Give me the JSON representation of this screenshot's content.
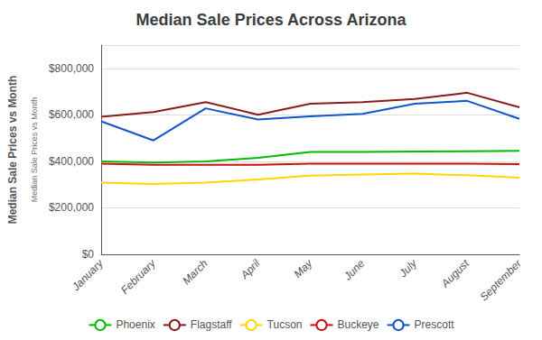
{
  "chart_data": {
    "type": "line",
    "title": "Median Sale Prices Across Arizona",
    "ylabel": "Median Sale Prices vs Month",
    "annotations": [
      "Median Sale Prices vs Month"
    ],
    "categories": [
      "January",
      "February",
      "March",
      "April",
      "May",
      "June",
      "July",
      "August",
      "September"
    ],
    "series": [
      {
        "name": "Phoenix",
        "color": "#00BB00",
        "values": [
          400000,
          395000,
          400000,
          415000,
          440000,
          440000,
          442000,
          443000,
          445000
        ]
      },
      {
        "name": "Flagstaff",
        "color": "#8B1A1A",
        "values": [
          592000,
          612000,
          655000,
          600000,
          648000,
          655000,
          668000,
          695000,
          632000
        ]
      },
      {
        "name": "Tucson",
        "color": "#FFD700",
        "values": [
          308000,
          303000,
          308000,
          322000,
          338000,
          343000,
          347000,
          340000,
          330000
        ]
      },
      {
        "name": "Buckeye",
        "color": "#CC1111",
        "values": [
          390000,
          385000,
          385000,
          385000,
          390000,
          390000,
          390000,
          390000,
          388000
        ]
      },
      {
        "name": "Prescott",
        "color": "#1155CC",
        "values": [
          572000,
          490000,
          628000,
          580000,
          594000,
          604000,
          648000,
          660000,
          583000
        ]
      }
    ],
    "ylim": [
      0,
      900000
    ],
    "yticks": [
      {
        "value": 0,
        "label": "$0"
      },
      {
        "value": 200000,
        "label": "$200,000"
      },
      {
        "value": 400000,
        "label": "$400,000"
      },
      {
        "value": 600000,
        "label": "$600,000"
      },
      {
        "value": 800000,
        "label": "$800,000"
      }
    ],
    "grid": true,
    "legend": "bottom"
  }
}
